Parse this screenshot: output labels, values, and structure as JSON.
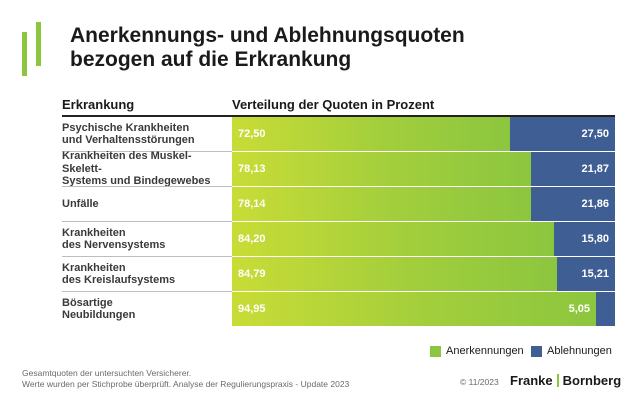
{
  "title_line1": "Anerkennungs- und Ablehnungsquoten",
  "title_line2": "bezogen auf die Erkrankung",
  "header": {
    "left": "Erkrankung",
    "right": "Verteilung der Quoten in Prozent"
  },
  "colors": {
    "accept": "#8cc63f",
    "reject": "#3f5f94",
    "logo": "#8cc63f"
  },
  "chart_data": {
    "type": "bar",
    "orientation": "horizontal",
    "stacked": true,
    "xlim": [
      0,
      100
    ],
    "categories": [
      [
        "Psychische Krankheiten",
        "und Verhaltensstörungen"
      ],
      [
        "Krankheiten des Muskel-Skelett-",
        "Systems und Bindegewebes"
      ],
      [
        "Unfälle"
      ],
      [
        "Krankheiten",
        "des Nervensystems"
      ],
      [
        "Krankheiten",
        "des Kreislaufsystems"
      ],
      [
        "Bösartige",
        "Neubildungen"
      ]
    ],
    "series": [
      {
        "name": "Anerkennungen",
        "values": [
          72.5,
          78.13,
          78.14,
          84.2,
          84.79,
          94.95
        ],
        "labels": [
          "72,50",
          "78,13",
          "78,14",
          "84,20",
          "84,79",
          "94,95"
        ]
      },
      {
        "name": "Ablehnungen",
        "values": [
          27.5,
          21.87,
          21.86,
          15.8,
          15.21,
          5.05
        ],
        "labels": [
          "27,50",
          "21,87",
          "21,86",
          "15,80",
          "15,21",
          "5,05"
        ]
      }
    ],
    "legend": "bottom-right"
  },
  "footnote": {
    "line1": "Gesamtquoten der untersuchten Versicherer.",
    "line2": "Werte wurden per Stichprobe überprüft. Analyse der Regulierungspraxis - Update 2023"
  },
  "copyright": "© 11/2023",
  "brand": {
    "left": "Franke",
    "right": "Bornberg"
  }
}
